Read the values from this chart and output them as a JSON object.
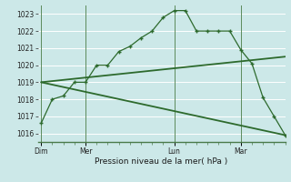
{
  "background_color": "#cce8e8",
  "grid_color": "#ffffff",
  "line_color": "#2d6a2d",
  "title": "Pression niveau de la mer( hPa )",
  "ylim": [
    1015.5,
    1023.5
  ],
  "yticks": [
    1016,
    1017,
    1018,
    1019,
    1020,
    1021,
    1022,
    1023
  ],
  "day_labels": [
    "Dim",
    "Mer",
    "Lun",
    "Mar"
  ],
  "day_positions": [
    0,
    4,
    12,
    18
  ],
  "vline_positions": [
    0,
    4,
    12,
    18
  ],
  "xlim": [
    -0.3,
    22
  ],
  "series1_x": [
    0,
    1,
    2,
    3,
    4,
    5,
    6,
    7,
    8,
    9,
    10,
    11,
    12,
    13,
    14,
    15,
    16,
    17,
    18,
    19,
    20,
    21,
    22
  ],
  "series1_y": [
    1016.6,
    1018.0,
    1018.2,
    1019.0,
    1019.0,
    1020.0,
    1020.0,
    1020.8,
    1021.1,
    1021.6,
    1022.0,
    1022.8,
    1023.2,
    1023.2,
    1022.0,
    1022.0,
    1022.0,
    1022.0,
    1020.9,
    1020.1,
    1018.1,
    1017.0,
    1015.9
  ],
  "series2_x": [
    0,
    22
  ],
  "series2_y": [
    1019.0,
    1020.5
  ],
  "series3_x": [
    0,
    22
  ],
  "series3_y": [
    1019.0,
    1015.9
  ]
}
